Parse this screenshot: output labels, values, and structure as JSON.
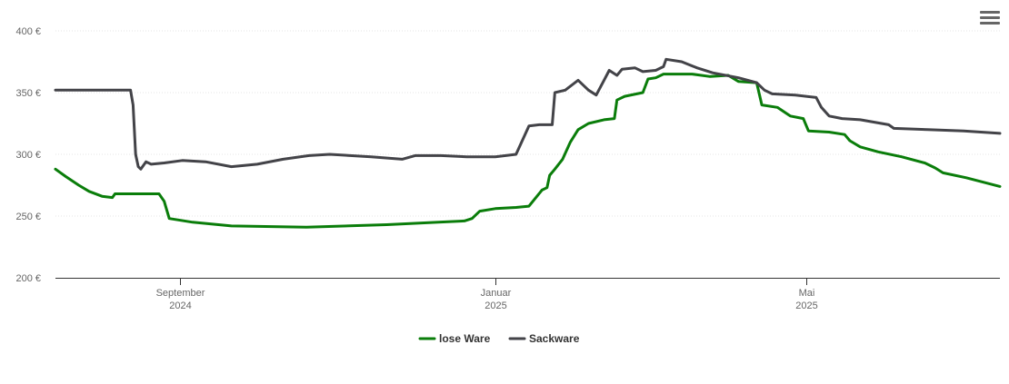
{
  "chart_data": {
    "type": "line",
    "title": "",
    "xlabel": "",
    "ylabel": "",
    "ylim": [
      200,
      400
    ],
    "xlim": [
      "2024-07-15",
      "2025-07-15"
    ],
    "y_ticks": [
      {
        "value": 200,
        "label": "200 €"
      },
      {
        "value": 250,
        "label": "250 €"
      },
      {
        "value": 300,
        "label": "300 €"
      },
      {
        "value": 350,
        "label": "350 €"
      },
      {
        "value": 400,
        "label": "400 €"
      }
    ],
    "x_ticks": [
      {
        "date": "2024-09-01",
        "label": [
          "September",
          "2024"
        ]
      },
      {
        "date": "2025-01-01",
        "label": [
          "Januar",
          "2025"
        ]
      },
      {
        "date": "2025-05-01",
        "label": [
          "Mai",
          "2025"
        ]
      }
    ],
    "grid": "horizontal dotted",
    "legend_position": "bottom-center",
    "series": [
      {
        "name": "lose Ware",
        "color": "#0a7d0a",
        "points": [
          [
            "2024-07-15",
            288
          ],
          [
            "2024-07-19",
            282
          ],
          [
            "2024-07-24",
            275
          ],
          [
            "2024-07-28",
            270
          ],
          [
            "2024-08-02",
            266
          ],
          [
            "2024-08-06",
            265
          ],
          [
            "2024-08-07",
            268
          ],
          [
            "2024-08-15",
            268
          ],
          [
            "2024-08-20",
            268
          ],
          [
            "2024-08-24",
            268
          ],
          [
            "2024-08-26",
            262
          ],
          [
            "2024-08-28",
            248
          ],
          [
            "2024-09-06",
            245
          ],
          [
            "2024-09-21",
            242
          ],
          [
            "2024-10-20",
            241
          ],
          [
            "2024-11-20",
            243
          ],
          [
            "2024-12-10",
            245
          ],
          [
            "2024-12-20",
            246
          ],
          [
            "2024-12-23",
            248
          ],
          [
            "2024-12-26",
            254
          ],
          [
            "2025-01-01",
            256
          ],
          [
            "2025-01-09",
            257
          ],
          [
            "2025-01-14",
            258
          ],
          [
            "2025-01-19",
            271
          ],
          [
            "2025-01-21",
            273
          ],
          [
            "2025-01-22",
            283
          ],
          [
            "2025-01-24",
            288
          ],
          [
            "2025-01-27",
            296
          ],
          [
            "2025-01-30",
            310
          ],
          [
            "2025-02-02",
            320
          ],
          [
            "2025-02-06",
            325
          ],
          [
            "2025-02-12",
            328
          ],
          [
            "2025-02-16",
            329
          ],
          [
            "2025-02-17",
            344
          ],
          [
            "2025-02-20",
            347
          ],
          [
            "2025-02-27",
            350
          ],
          [
            "2025-03-01",
            361
          ],
          [
            "2025-03-04",
            362
          ],
          [
            "2025-03-07",
            365
          ],
          [
            "2025-03-18",
            365
          ],
          [
            "2025-03-25",
            363
          ],
          [
            "2025-04-01",
            364
          ],
          [
            "2025-04-05",
            359
          ],
          [
            "2025-04-12",
            358
          ],
          [
            "2025-04-14",
            340
          ],
          [
            "2025-04-20",
            338
          ],
          [
            "2025-04-25",
            331
          ],
          [
            "2025-04-30",
            329
          ],
          [
            "2025-05-02",
            319
          ],
          [
            "2025-05-10",
            318
          ],
          [
            "2025-05-16",
            316
          ],
          [
            "2025-05-18",
            311
          ],
          [
            "2025-05-22",
            306
          ],
          [
            "2025-05-29",
            302
          ],
          [
            "2025-06-07",
            298
          ],
          [
            "2025-06-16",
            293
          ],
          [
            "2025-06-20",
            289
          ],
          [
            "2025-06-23",
            285
          ],
          [
            "2025-07-02",
            281
          ],
          [
            "2025-07-15",
            274
          ]
        ]
      },
      {
        "name": "Sackware",
        "color": "#434348",
        "points": [
          [
            "2024-07-15",
            352
          ],
          [
            "2024-07-30",
            352
          ],
          [
            "2024-08-10",
            352
          ],
          [
            "2024-08-13",
            352
          ],
          [
            "2024-08-14",
            340
          ],
          [
            "2024-08-15",
            300
          ],
          [
            "2024-08-16",
            290
          ],
          [
            "2024-08-17",
            288
          ],
          [
            "2024-08-19",
            294
          ],
          [
            "2024-08-21",
            292
          ],
          [
            "2024-08-26",
            293
          ],
          [
            "2024-09-02",
            295
          ],
          [
            "2024-09-11",
            294
          ],
          [
            "2024-09-21",
            290
          ],
          [
            "2024-10-01",
            292
          ],
          [
            "2024-10-11",
            296
          ],
          [
            "2024-10-21",
            299
          ],
          [
            "2024-10-29",
            300
          ],
          [
            "2024-11-14",
            298
          ],
          [
            "2024-11-26",
            296
          ],
          [
            "2024-12-01",
            299
          ],
          [
            "2024-12-11",
            299
          ],
          [
            "2024-12-21",
            298
          ],
          [
            "2025-01-01",
            298
          ],
          [
            "2025-01-09",
            300
          ],
          [
            "2025-01-14",
            323
          ],
          [
            "2025-01-18",
            324
          ],
          [
            "2025-01-23",
            324
          ],
          [
            "2025-01-24",
            350
          ],
          [
            "2025-01-28",
            352
          ],
          [
            "2025-02-02",
            360
          ],
          [
            "2025-02-06",
            352
          ],
          [
            "2025-02-09",
            348
          ],
          [
            "2025-02-12",
            360
          ],
          [
            "2025-02-14",
            368
          ],
          [
            "2025-02-17",
            364
          ],
          [
            "2025-02-19",
            369
          ],
          [
            "2025-02-24",
            370
          ],
          [
            "2025-02-27",
            367
          ],
          [
            "2025-03-04",
            368
          ],
          [
            "2025-03-07",
            371
          ],
          [
            "2025-03-08",
            377
          ],
          [
            "2025-03-14",
            375
          ],
          [
            "2025-03-20",
            370
          ],
          [
            "2025-03-26",
            366
          ],
          [
            "2025-04-05",
            362
          ],
          [
            "2025-04-12",
            358
          ],
          [
            "2025-04-15",
            352
          ],
          [
            "2025-04-18",
            349
          ],
          [
            "2025-04-27",
            348
          ],
          [
            "2025-05-05",
            346
          ],
          [
            "2025-05-07",
            338
          ],
          [
            "2025-05-10",
            331
          ],
          [
            "2025-05-15",
            329
          ],
          [
            "2025-05-22",
            328
          ],
          [
            "2025-06-02",
            324
          ],
          [
            "2025-06-04",
            321
          ],
          [
            "2025-06-17",
            320
          ],
          [
            "2025-07-01",
            319
          ],
          [
            "2025-07-15",
            317
          ]
        ]
      }
    ]
  },
  "menu": {
    "icon": "hamburger-menu-icon"
  }
}
